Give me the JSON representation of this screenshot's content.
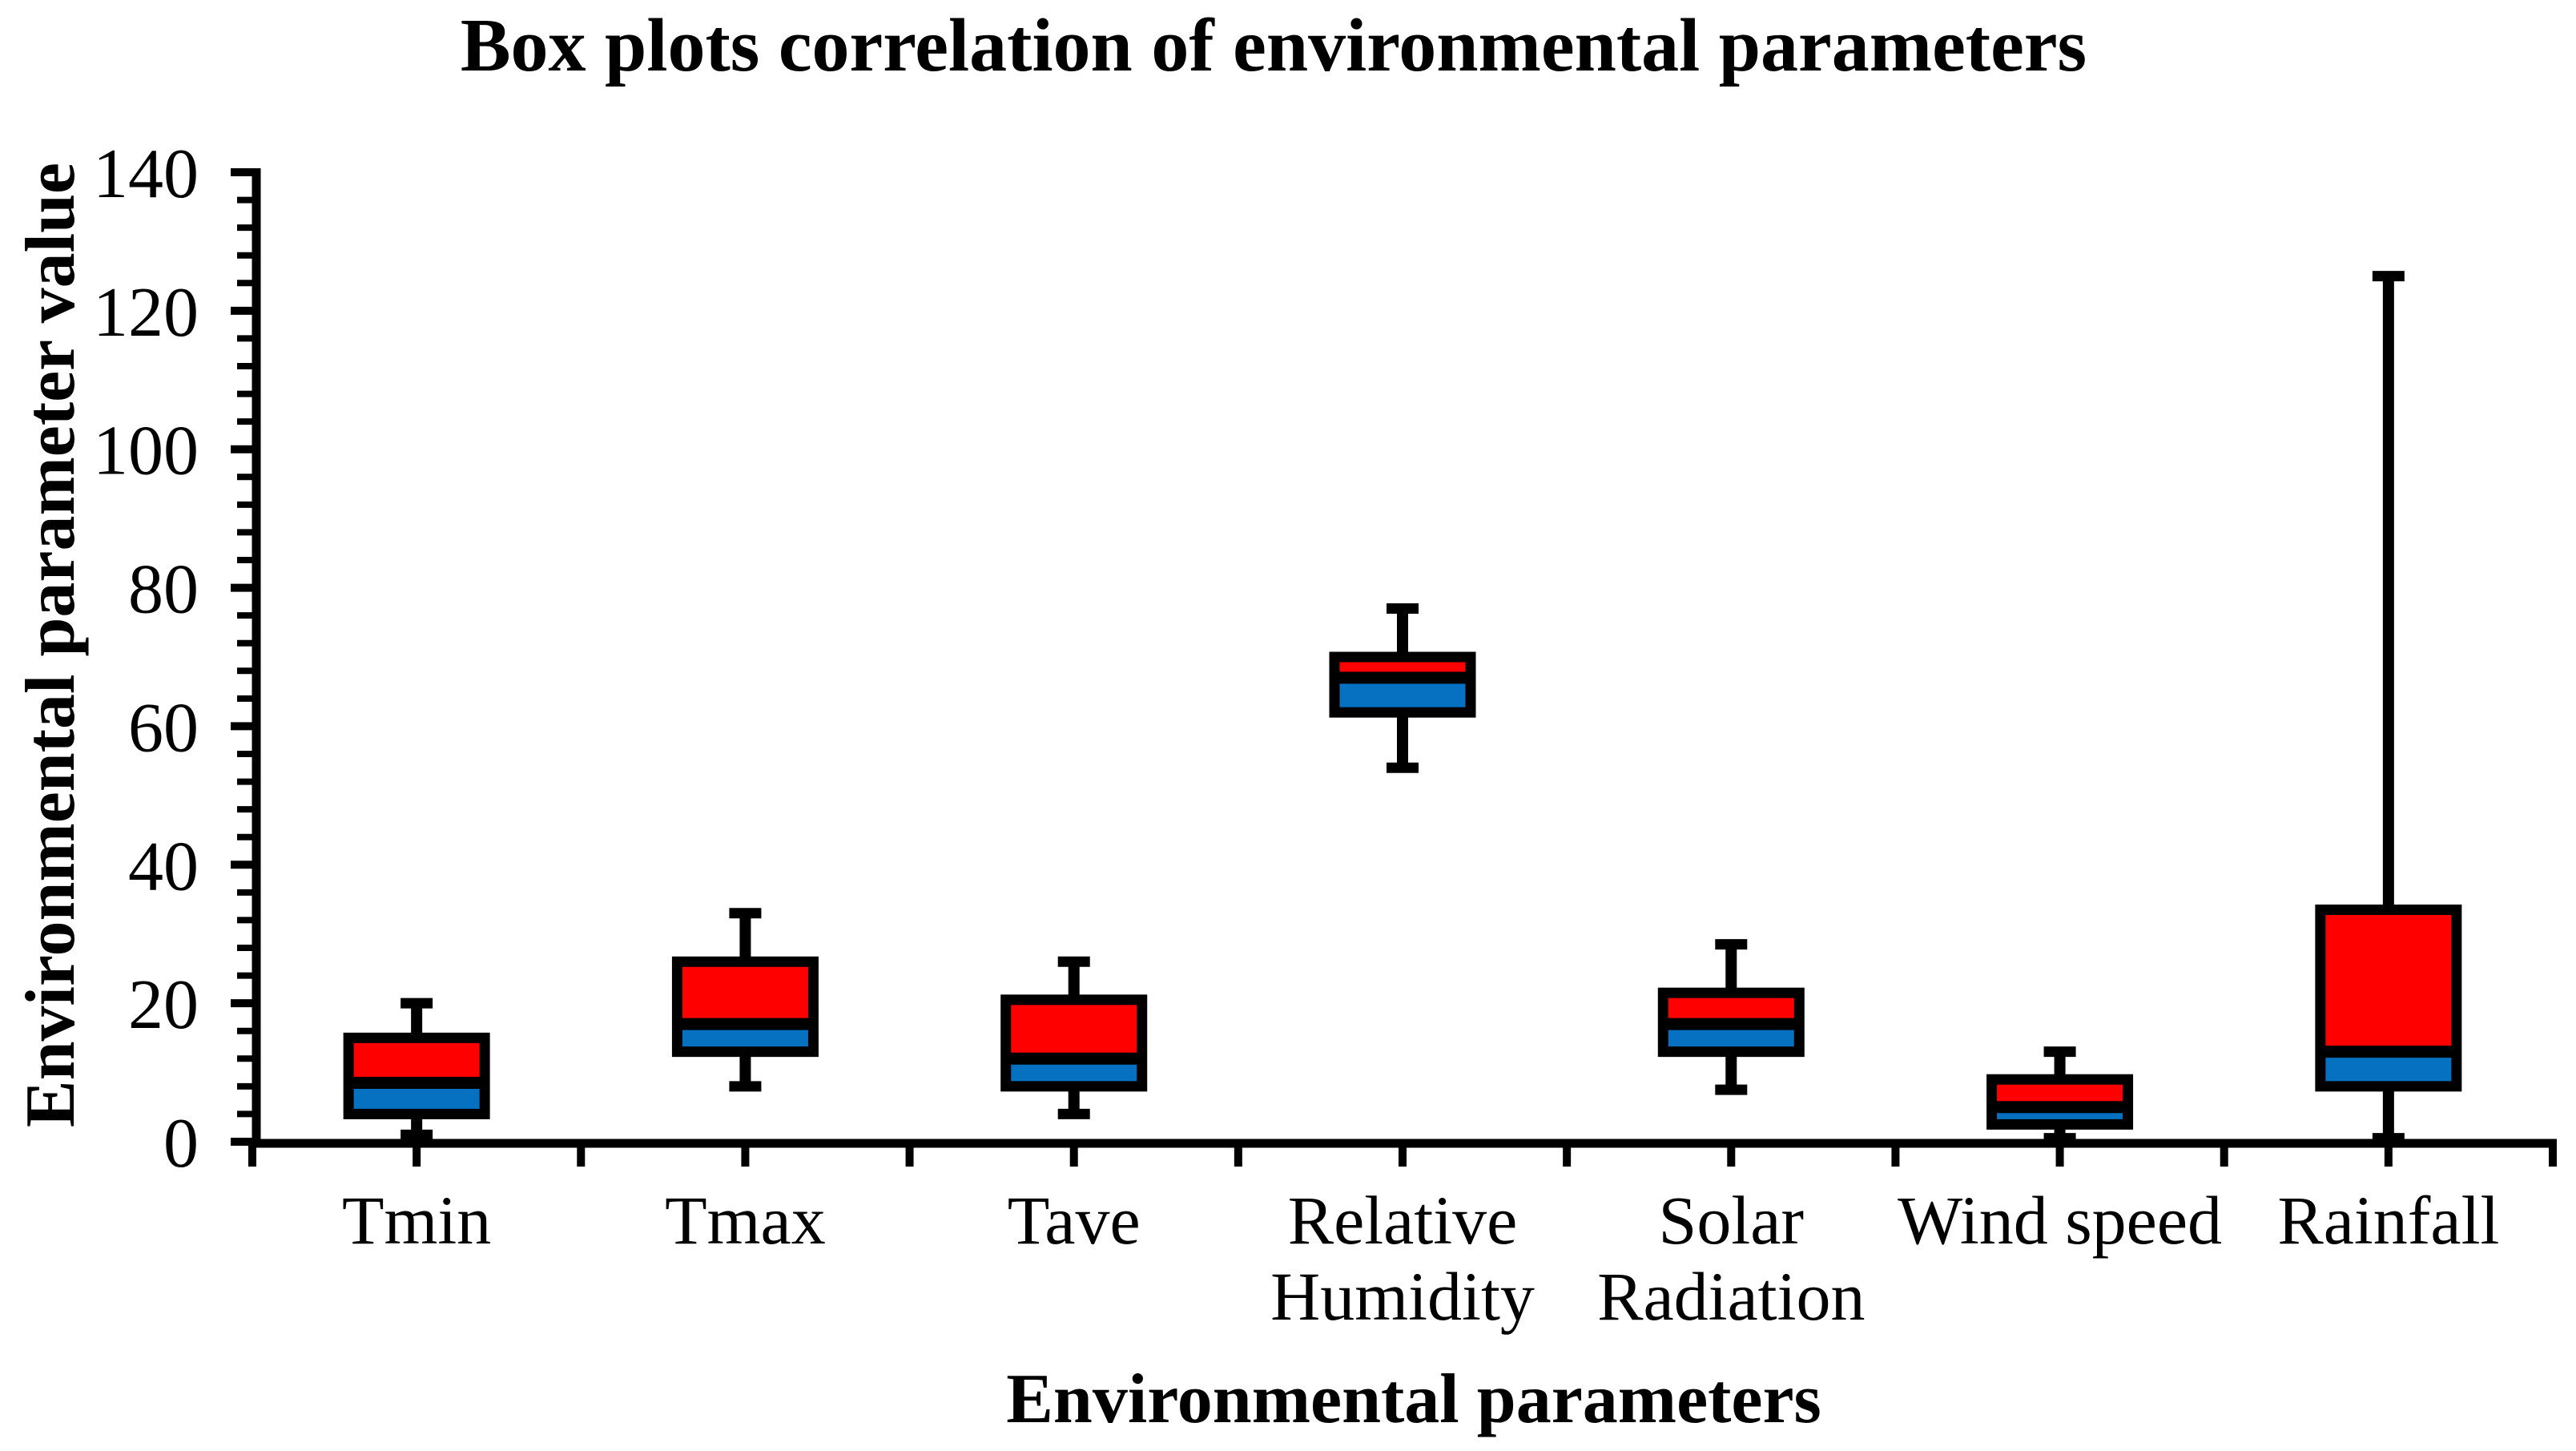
{
  "chart": {
    "title": "Box plots correlation of environmental parameters",
    "x_axis": {
      "title": "Environmental parameters"
    },
    "y_axis": {
      "title": "Environmental parameter value"
    }
  },
  "chart_data": {
    "type": "boxplot",
    "title": "Box plots correlation of environmental parameters",
    "xlabel": "Environmental parameters",
    "ylabel": "Environmental parameter value",
    "ylim": [
      0,
      140
    ],
    "y_major_unit": 20,
    "y_minor_unit": 4,
    "y_tick_labels": [
      0,
      20,
      40,
      60,
      80,
      100,
      120,
      140
    ],
    "grid": false,
    "legend": "none",
    "categories": [
      "Tmin",
      "Tmax",
      "Tave",
      "Relative Humidity",
      "Solar Radiation",
      "Wind speed",
      "Rainfall"
    ],
    "series": [
      {
        "name": "Tmin",
        "label_lines": [
          "Tmin"
        ],
        "min": 1,
        "q1": 4,
        "median": 8.5,
        "q3": 15,
        "max": 20
      },
      {
        "name": "Tmax",
        "label_lines": [
          "Tmax"
        ],
        "min": 8,
        "q1": 13,
        "median": 17,
        "q3": 26,
        "max": 33
      },
      {
        "name": "Tave",
        "label_lines": [
          "Tave"
        ],
        "min": 4,
        "q1": 8,
        "median": 12,
        "q3": 20.5,
        "max": 26
      },
      {
        "name": "Relative Humidity",
        "label_lines": [
          "Relative",
          "Humidity"
        ],
        "min": 54,
        "q1": 62,
        "median": 67,
        "q3": 70,
        "max": 77
      },
      {
        "name": "Solar Radiation",
        "label_lines": [
          "Solar",
          "Radiation"
        ],
        "min": 7.5,
        "q1": 13,
        "median": 17,
        "q3": 21.5,
        "max": 28.5
      },
      {
        "name": "Wind speed",
        "label_lines": [
          "Wind speed"
        ],
        "min": 0.5,
        "q1": 2.5,
        "median": 5,
        "q3": 9,
        "max": 13
      },
      {
        "name": "Rainfall",
        "label_lines": [
          "Rainfall"
        ],
        "min": 0.5,
        "q1": 8,
        "median": 13,
        "q3": 33.5,
        "max": 125
      }
    ],
    "colors": {
      "upper_box_fill": "#ff0000",
      "lower_box_fill": "#0671c1",
      "line": "#000000",
      "background": "#ffffff"
    }
  }
}
